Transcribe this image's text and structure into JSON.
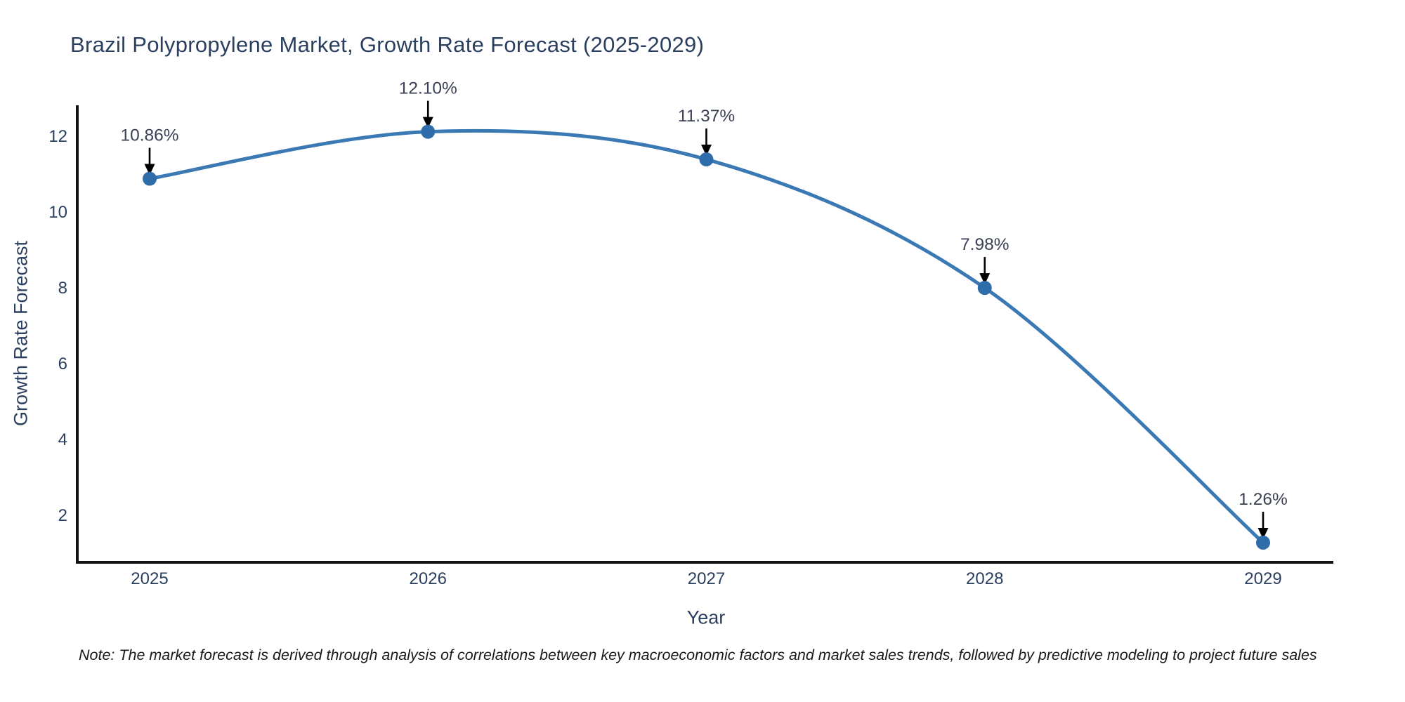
{
  "title": "Brazil Polypropylene Market, Growth Rate Forecast (2025-2029)",
  "note": "Note: The market forecast is derived through analysis of correlations between key macroeconomic factors and market sales trends, followed by predictive modeling to project future sales",
  "chart_data": {
    "type": "line",
    "title": "Brazil Polypropylene Market, Growth Rate Forecast (2025-2029)",
    "xlabel": "Year",
    "ylabel": "Growth Rate Forecast",
    "categories": [
      "2025",
      "2026",
      "2027",
      "2028",
      "2029"
    ],
    "series": [
      {
        "name": "Growth Rate Forecast",
        "values": [
          10.86,
          12.1,
          11.37,
          7.98,
          1.26
        ]
      }
    ],
    "point_labels": [
      "10.86%",
      "12.10%",
      "11.37%",
      "7.98%",
      "1.26%"
    ],
    "yticks": [
      2,
      4,
      6,
      8,
      10,
      12
    ],
    "ylim": [
      0.75,
      12.8
    ],
    "grid": false,
    "legend_position": "none",
    "line_shape": "spline",
    "annotation_style": "label-above-with-down-arrow",
    "colors": {
      "line": "#3b79b5",
      "marker": "#2e6caa",
      "axis": "#111111",
      "tick_text": "#2a3f5f",
      "annotation_text": "#3a4154",
      "arrow": "#000000",
      "title_text": "#2a3f5f"
    }
  }
}
